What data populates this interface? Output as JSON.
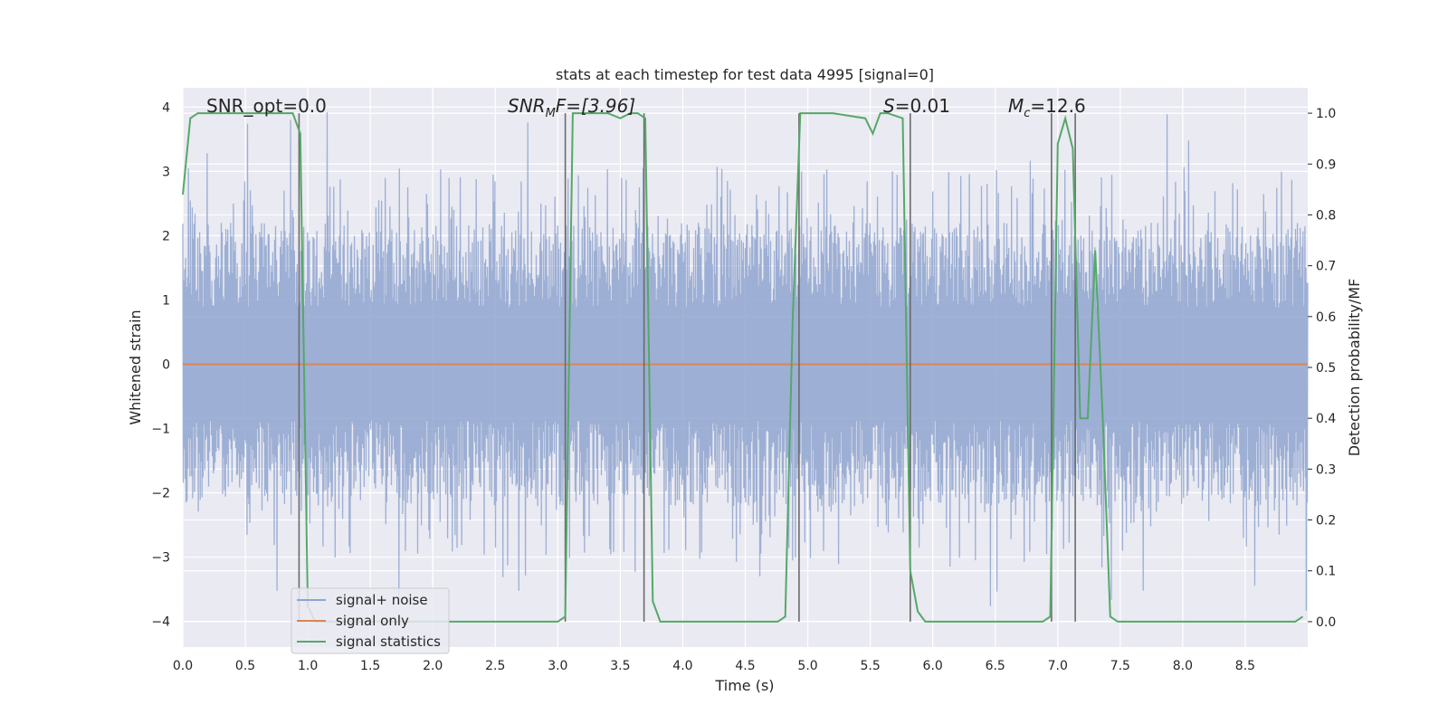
{
  "chart_data": {
    "type": "line",
    "title": "stats at each timestep for test data 4995 [signal=0]",
    "xlabel": "Time (s)",
    "ylabel_left": "Whitened strain",
    "ylabel_right": "Detection probability/MF",
    "xlim": [
      0,
      9.0
    ],
    "ylim_left": [
      -4.4,
      4.3
    ],
    "ylim_right": [
      -0.05,
      1.05
    ],
    "x_ticks": [
      "0.0",
      "0.5",
      "1.0",
      "1.5",
      "2.0",
      "2.5",
      "3.0",
      "3.5",
      "4.0",
      "4.5",
      "5.0",
      "5.5",
      "6.0",
      "6.5",
      "7.0",
      "7.5",
      "8.0",
      "8.5"
    ],
    "y_ticks_left": [
      "4",
      "3",
      "2",
      "1",
      "0",
      "−1",
      "−2",
      "−3",
      "−4"
    ],
    "y_ticks_right": [
      "1.0",
      "0.9",
      "0.8",
      "0.7",
      "0.6",
      "0.5",
      "0.4",
      "0.3",
      "0.2",
      "0.1",
      "0.0"
    ],
    "grid": true,
    "legend_position": "lower-left",
    "annotations": {
      "snr_opt": "SNR_opt=0.0",
      "snr_mf_main": "SNR",
      "snr_mf_sub": "M",
      "snr_mf_rest": "F=[3.96]",
      "s_main": "S",
      "s_rest": "=0.01",
      "mc_main": "M",
      "mc_sub": "c",
      "mc_rest": "=12.6"
    },
    "series": [
      {
        "name": "signal+ noise",
        "color": "#8fa5cf",
        "description_of_values": "whitened strain noise, roughly uniform amplitude about 0 with peaks near +4 and -4",
        "noise_envelope": {
          "typical_max": 2.2,
          "typical_min": -2.3,
          "peak_max": 3.95,
          "peak_min": -4.0
        }
      },
      {
        "name": "signal only",
        "color": "#dd8452",
        "x": [
          0,
          9.0
        ],
        "y": [
          0,
          0
        ]
      },
      {
        "name": "signal statistics",
        "color": "#55a868",
        "axis": "right",
        "x": [
          0.0,
          0.06,
          0.12,
          0.5,
          0.88,
          0.94,
          1.0,
          1.06,
          1.1,
          2.0,
          3.0,
          3.06,
          3.12,
          3.2,
          3.4,
          3.5,
          3.58,
          3.64,
          3.7,
          3.76,
          3.82,
          4.0,
          4.5,
          4.76,
          4.82,
          4.88,
          4.94,
          5.0,
          5.06,
          5.2,
          5.46,
          5.52,
          5.58,
          5.64,
          5.76,
          5.82,
          5.88,
          5.94,
          6.5,
          6.88,
          6.94,
          7.0,
          7.06,
          7.12,
          7.18,
          7.24,
          7.3,
          7.36,
          7.42,
          7.48,
          7.54,
          8.0,
          8.9,
          8.96
        ],
        "y": [
          0.84,
          0.99,
          1.0,
          1.0,
          1.0,
          0.96,
          0.03,
          0.0,
          0.0,
          0.0,
          0.0,
          0.01,
          1.0,
          1.0,
          1.0,
          0.99,
          1.0,
          1.0,
          0.99,
          0.04,
          0.0,
          0.0,
          0.0,
          0.0,
          0.01,
          0.6,
          1.0,
          1.0,
          1.0,
          1.0,
          0.99,
          0.96,
          1.0,
          1.0,
          0.99,
          0.1,
          0.02,
          0.0,
          0.0,
          0.0,
          0.01,
          0.94,
          0.99,
          0.93,
          0.4,
          0.4,
          0.73,
          0.4,
          0.01,
          0.0,
          0.0,
          0.0,
          0.0,
          0.01
        ]
      }
    ],
    "vertical_lines": {
      "color": "#6b6b6b",
      "x": [
        0.93,
        3.06,
        3.69,
        4.93,
        5.82,
        6.95,
        7.14
      ]
    }
  }
}
